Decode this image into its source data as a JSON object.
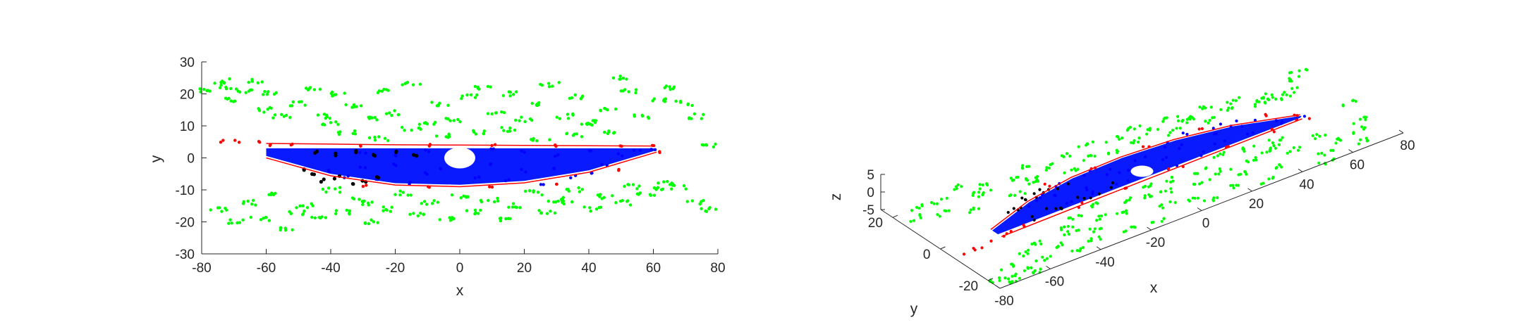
{
  "chart_data": [
    {
      "type": "scatter",
      "title": "",
      "xlabel": "x",
      "ylabel": "y",
      "xlim": [
        -80,
        80
      ],
      "ylim": [
        -30,
        30
      ],
      "xticks": [
        "-80",
        "-60",
        "-40",
        "-20",
        "0",
        "20",
        "40",
        "60",
        "80"
      ],
      "yticks": [
        "-30",
        "-20",
        "-10",
        "0",
        "10",
        "20",
        "30"
      ],
      "grid": false,
      "legend": "none",
      "series": [
        {
          "color": "#00ff00",
          "description": "outer point cloud",
          "points": [
            [
              -78,
              21
            ],
            [
              -74,
              24
            ],
            [
              -72,
              22
            ],
            [
              -70,
              18
            ],
            [
              -66,
              21
            ],
            [
              -64,
              24
            ],
            [
              -61,
              15
            ],
            [
              -58,
              20
            ],
            [
              -55,
              13
            ],
            [
              -50,
              17
            ],
            [
              -45,
              22
            ],
            [
              -41,
              13
            ],
            [
              -37,
              20
            ],
            [
              -33,
              16
            ],
            [
              -28,
              12
            ],
            [
              -25,
              21
            ],
            [
              -20,
              14
            ],
            [
              -15,
              23
            ],
            [
              -10,
              11
            ],
            [
              -6,
              17
            ],
            [
              -2,
              12
            ],
            [
              3,
              19
            ],
            [
              7,
              22
            ],
            [
              11,
              14
            ],
            [
              16,
              20
            ],
            [
              20,
              12
            ],
            [
              24,
              17
            ],
            [
              28,
              23
            ],
            [
              33,
              13
            ],
            [
              37,
              19
            ],
            [
              42,
              11
            ],
            [
              46,
              15
            ],
            [
              50,
              25
            ],
            [
              53,
              21
            ],
            [
              57,
              13
            ],
            [
              61,
              18
            ],
            [
              66,
              22
            ],
            [
              70,
              17
            ],
            [
              74,
              13
            ],
            [
              78,
              4
            ],
            [
              -75,
              -16
            ],
            [
              -70,
              -20
            ],
            [
              -66,
              -14
            ],
            [
              -62,
              -19
            ],
            [
              -57,
              -11
            ],
            [
              -53,
              -22
            ],
            [
              -48,
              -15
            ],
            [
              -44,
              -19
            ],
            [
              -40,
              -10
            ],
            [
              -36,
              -17
            ],
            [
              -31,
              -13
            ],
            [
              -27,
              -20
            ],
            [
              -22,
              -16
            ],
            [
              -18,
              -11
            ],
            [
              -13,
              -18
            ],
            [
              -9,
              -14
            ],
            [
              -4,
              -19
            ],
            [
              0,
              -12
            ],
            [
              5,
              -17
            ],
            [
              9,
              -13
            ],
            [
              14,
              -19
            ],
            [
              18,
              -15
            ],
            [
              23,
              -11
            ],
            [
              27,
              -17
            ],
            [
              32,
              -13
            ],
            [
              36,
              -10
            ],
            [
              41,
              -16
            ],
            [
              45,
              -12
            ],
            [
              50,
              -14
            ],
            [
              54,
              -9
            ],
            [
              58,
              -11
            ],
            [
              63,
              -8
            ],
            [
              68,
              -9
            ],
            [
              73,
              -14
            ],
            [
              77,
              -16
            ],
            [
              -35,
              8
            ],
            [
              -25,
              6
            ],
            [
              -15,
              9
            ],
            [
              -5,
              7
            ],
            [
              5,
              8
            ],
            [
              15,
              9
            ],
            [
              25,
              6
            ],
            [
              35,
              7
            ],
            [
              45,
              8
            ],
            [
              -40,
              11
            ],
            [
              40,
              11
            ],
            [
              -30,
              -14
            ],
            [
              30,
              -14
            ],
            [
              -50,
              -17
            ],
            [
              60,
              -10
            ]
          ]
        },
        {
          "color": "#0000ff",
          "description": "ground returns",
          "points": [
            [
              -40,
              -4
            ],
            [
              -35,
              -6
            ],
            [
              -30,
              -3
            ],
            [
              -25,
              -7
            ],
            [
              -20,
              -2
            ],
            [
              -15,
              -8
            ],
            [
              -10,
              -5
            ],
            [
              -5,
              -3
            ],
            [
              5,
              -6
            ],
            [
              10,
              -2
            ],
            [
              15,
              -7
            ],
            [
              20,
              -4
            ],
            [
              25,
              -8
            ],
            [
              30,
              -3
            ],
            [
              35,
              -6
            ],
            [
              40,
              -5
            ],
            [
              45,
              -2
            ],
            [
              50,
              1
            ],
            [
              55,
              2
            ],
            [
              60,
              3
            ],
            [
              -30,
              2
            ],
            [
              -20,
              1
            ],
            [
              -10,
              2
            ],
            [
              10,
              3
            ],
            [
              20,
              2
            ],
            [
              30,
              1
            ],
            [
              40,
              2
            ]
          ]
        },
        {
          "color": "#000000",
          "description": "curb points",
          "points": [
            [
              -48,
              -4
            ],
            [
              -45,
              -5
            ],
            [
              -42,
              -7
            ],
            [
              -38,
              -6
            ],
            [
              -34,
              -8
            ],
            [
              -30,
              -7
            ],
            [
              -26,
              -6
            ],
            [
              -44,
              2
            ],
            [
              -38,
              1
            ],
            [
              -32,
              2
            ],
            [
              -26,
              1
            ],
            [
              -20,
              2
            ],
            [
              -14,
              1
            ]
          ]
        },
        {
          "color": "#ff0000",
          "description": "boundary points",
          "points": [
            [
              -74,
              5
            ],
            [
              -69,
              5
            ],
            [
              -62,
              5
            ],
            [
              -58,
              4
            ],
            [
              -52,
              4
            ],
            [
              -30,
              4
            ],
            [
              -10,
              4
            ],
            [
              10,
              4
            ],
            [
              30,
              4
            ],
            [
              50,
              4
            ],
            [
              60,
              4
            ],
            [
              -30,
              -9
            ],
            [
              -10,
              -9
            ],
            [
              10,
              -9
            ],
            [
              30,
              -8
            ],
            [
              50,
              -4
            ],
            [
              61,
              2
            ]
          ]
        },
        {
          "color": "#0000ff",
          "description": "dense ground fill",
          "points": []
        }
      ],
      "curves": [
        {
          "color": "#ff0000",
          "description": "fitted boundary upper",
          "x": [
            -60,
            -40,
            -20,
            0,
            20,
            40,
            60
          ],
          "y": [
            4.5,
            4.3,
            4.1,
            4.0,
            3.9,
            3.8,
            3.7
          ]
        },
        {
          "color": "#ff0000",
          "description": "fitted boundary lower",
          "x": [
            -60,
            -40,
            -20,
            0,
            20,
            40,
            61
          ],
          "y": [
            0.0,
            -5.6,
            -8.5,
            -9.0,
            -7.8,
            -4.5,
            1.8
          ]
        }
      ]
    },
    {
      "type": "scatter",
      "title": "",
      "xlabel": "x",
      "ylabel": "y",
      "zlabel": "z",
      "xlim": [
        -80,
        80
      ],
      "ylim": [
        -25,
        25
      ],
      "zlim": [
        -5,
        5
      ],
      "xticks": [
        "-80",
        "-60",
        "-40",
        "-20",
        "0",
        "20",
        "40",
        "60",
        "80"
      ],
      "yticks": [
        "-20",
        "0",
        "20"
      ],
      "zticks": [
        "-5",
        "0",
        "5"
      ],
      "grid": false,
      "legend": "none",
      "view": "3d"
    }
  ]
}
